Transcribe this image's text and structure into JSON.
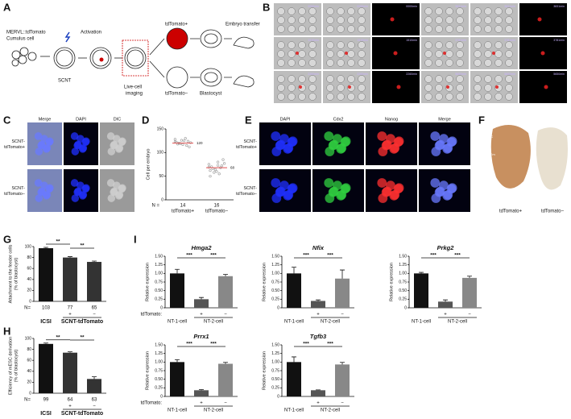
{
  "panel_letters": [
    "A",
    "B",
    "C",
    "D",
    "E",
    "F",
    "G",
    "H",
    "I"
  ],
  "panel_a": {
    "cell_label": [
      "MERVL::tdTomato",
      "Cumulus cell"
    ],
    "activation": "Activation",
    "scnt": "SCNT",
    "imaging": [
      "Live-cell",
      "imaging"
    ],
    "positive": "tdTomato+",
    "negative": "tdTomato−",
    "transfer": "Embryo transfer",
    "blastocyst": "Blastocyst"
  },
  "panel_b": {
    "timestamps": [
      [
        "0000min",
        "0000min",
        "0000min",
        "3831min",
        "3831min",
        "3831min"
      ],
      [
        "1510min",
        "1510min",
        "1510min",
        "3781min",
        "3781min",
        "3781min"
      ],
      [
        "2260min",
        "2260min",
        "2260min",
        "5650min",
        "5650min",
        "5650min"
      ]
    ]
  },
  "panel_c": {
    "columns": [
      "Merge",
      "DAPI",
      "DIC"
    ],
    "rows": [
      [
        "SCNT-",
        "tdTomato+"
      ],
      [
        "SCNT-",
        "tdTomato−"
      ]
    ]
  },
  "panel_e": {
    "columns": [
      "DAPI",
      "Cdx2",
      "Nanog",
      "Merge"
    ],
    "rows": [
      [
        "SCNT-",
        "tdTomato+"
      ],
      [
        "SCNT-",
        "tdTomato−"
      ]
    ]
  },
  "panel_f": {
    "regions": [
      "EPC",
      "ExEm",
      "Epi"
    ],
    "captions": [
      "tdTomato+",
      "tdTomato−"
    ]
  },
  "chart_data": [
    {
      "type": "dot",
      "y_label": [
        "Cell per embryo"
      ],
      "categories": [
        "tdTomato+",
        "tdTomato−"
      ],
      "n_label": "N =",
      "n": [
        14,
        16
      ],
      "points": [
        [
          128,
          125,
          122,
          130,
          118,
          115,
          120,
          124,
          119,
          112,
          126,
          121,
          117,
          123
        ],
        [
          75,
          80,
          62,
          55,
          70,
          68,
          66,
          72,
          58,
          85,
          64,
          77,
          60,
          69,
          73,
          50
        ]
      ],
      "means": [
        120,
        68
      ],
      "color": "#999999",
      "mean_color": "#e05050",
      "ylim": [
        0,
        150
      ],
      "yticks": [
        0,
        50,
        100,
        150
      ]
    },
    {
      "type": "bar",
      "y_label": [
        "Attachment to the feeder cells",
        "(% of blastocyst)"
      ],
      "values": [
        97,
        80,
        72
      ],
      "errors": [
        1.5,
        1.5,
        1.5
      ],
      "colors": [
        "#111111",
        "#333333",
        "#333333"
      ],
      "n_label": "N=",
      "n": [
        103,
        77,
        65
      ],
      "bar_marks": [
        null,
        "+",
        "−"
      ],
      "group_labels": [
        "ICSI",
        "SCNT-tdTomato"
      ],
      "significance": [
        "**",
        "**"
      ],
      "ylim": [
        0,
        100
      ],
      "yticks": [
        0,
        20,
        40,
        60,
        80,
        100
      ]
    },
    {
      "type": "bar",
      "y_label": [
        "Efficiency of mESC derivation",
        "(% of blastocyst)"
      ],
      "values": [
        90,
        74,
        26
      ],
      "errors": [
        1.5,
        1.5,
        4
      ],
      "colors": [
        "#111111",
        "#333333",
        "#333333"
      ],
      "n_label": "N=",
      "n": [
        99,
        64,
        63
      ],
      "bar_marks": [
        null,
        "+",
        "−"
      ],
      "group_labels": [
        "ICSI",
        "SCNT-tdTomato"
      ],
      "significance": [
        "**",
        "**"
      ],
      "ylim": [
        0,
        100
      ],
      "yticks": [
        0,
        20,
        40,
        60,
        80,
        100
      ]
    },
    {
      "type": "bar",
      "title": "Hmga2",
      "y_label": [
        "Relative expression"
      ],
      "values": [
        1.0,
        0.25,
        0.92
      ],
      "errors": [
        0.12,
        0.05,
        0.05
      ],
      "colors": [
        "#111111",
        "#555555",
        "#888888"
      ],
      "row_label": "tdTomato:",
      "bar_marks": [
        null,
        "+",
        "−"
      ],
      "group_labels": [
        "NT-1-cell",
        "NT-2-cell"
      ],
      "significance": [
        "***",
        "***"
      ],
      "ylim": [
        0,
        1.5
      ],
      "yticks": [
        0,
        0.25,
        {
          "value": 0.5,
          "label": "0.50"
        },
        0.75,
        {
          "value": 1,
          "label": "1.00"
        },
        1.25,
        {
          "value": 1.5,
          "label": "1.50"
        }
      ]
    },
    {
      "type": "bar",
      "title": "Nfix",
      "y_label": [
        "Relative expression"
      ],
      "values": [
        1.0,
        0.2,
        0.85
      ],
      "errors": [
        0.18,
        0.03,
        0.25
      ],
      "colors": [
        "#111111",
        "#555555",
        "#888888"
      ],
      "bar_marks": [
        null,
        "+",
        "−"
      ],
      "group_labels": [
        "NT-1-cell",
        "NT-2-cell"
      ],
      "significance": [
        "***",
        "***"
      ],
      "ylim": [
        0,
        1.5
      ],
      "yticks": [
        0,
        0.25,
        {
          "value": 0.5,
          "label": "0.50"
        },
        0.75,
        {
          "value": 1,
          "label": "1.00"
        },
        1.25,
        {
          "value": 1.5,
          "label": "1.50"
        }
      ]
    },
    {
      "type": "bar",
      "title": "Prkg2",
      "y_label": [
        "Relative expression"
      ],
      "values": [
        1.0,
        0.18,
        0.87
      ],
      "errors": [
        0.03,
        0.05,
        0.05
      ],
      "colors": [
        "#111111",
        "#555555",
        "#888888"
      ],
      "bar_marks": [
        null,
        "+",
        "−"
      ],
      "group_labels": [
        "NT-1-cell",
        "NT-2-cell"
      ],
      "significance": [
        "***",
        "***"
      ],
      "ylim": [
        0,
        1.5
      ],
      "yticks": [
        0,
        0.25,
        {
          "value": 0.5,
          "label": "0.50"
        },
        0.75,
        {
          "value": 1,
          "label": "1.00"
        },
        1.25,
        {
          "value": 1.5,
          "label": "1.50"
        }
      ]
    },
    {
      "type": "bar",
      "title": "Prrx1",
      "y_label": [
        "Relative expression"
      ],
      "values": [
        1.0,
        0.18,
        0.95
      ],
      "errors": [
        0.07,
        0.02,
        0.04
      ],
      "colors": [
        "#111111",
        "#555555",
        "#888888"
      ],
      "row_label": "tdTomato:",
      "bar_marks": [
        null,
        "+",
        "−"
      ],
      "group_labels": [
        "NT-1-cell",
        "NT-2-cell"
      ],
      "significance": [
        "***",
        "***"
      ],
      "ylim": [
        0,
        1.5
      ],
      "yticks": [
        0,
        0.25,
        {
          "value": 0.5,
          "label": "0.50"
        },
        0.75,
        {
          "value": 1,
          "label": "1.00"
        },
        1.25,
        {
          "value": 1.5,
          "label": "1.50"
        }
      ]
    },
    {
      "type": "bar",
      "title": "Tgfb3",
      "y_label": [
        "Relative expression"
      ],
      "values": [
        1.0,
        0.18,
        0.93
      ],
      "errors": [
        0.15,
        0.01,
        0.06
      ],
      "colors": [
        "#111111",
        "#555555",
        "#888888"
      ],
      "bar_marks": [
        null,
        "+",
        "−"
      ],
      "group_labels": [
        "NT-1-cell",
        "NT-2-cell"
      ],
      "significance": [
        "***",
        "***"
      ],
      "ylim": [
        0,
        1.5
      ],
      "yticks": [
        0,
        0.25,
        {
          "value": 0.5,
          "label": "0.50"
        },
        0.75,
        {
          "value": 1,
          "label": "1.00"
        },
        1.25,
        {
          "value": 1.5,
          "label": "1.50"
        }
      ]
    }
  ]
}
